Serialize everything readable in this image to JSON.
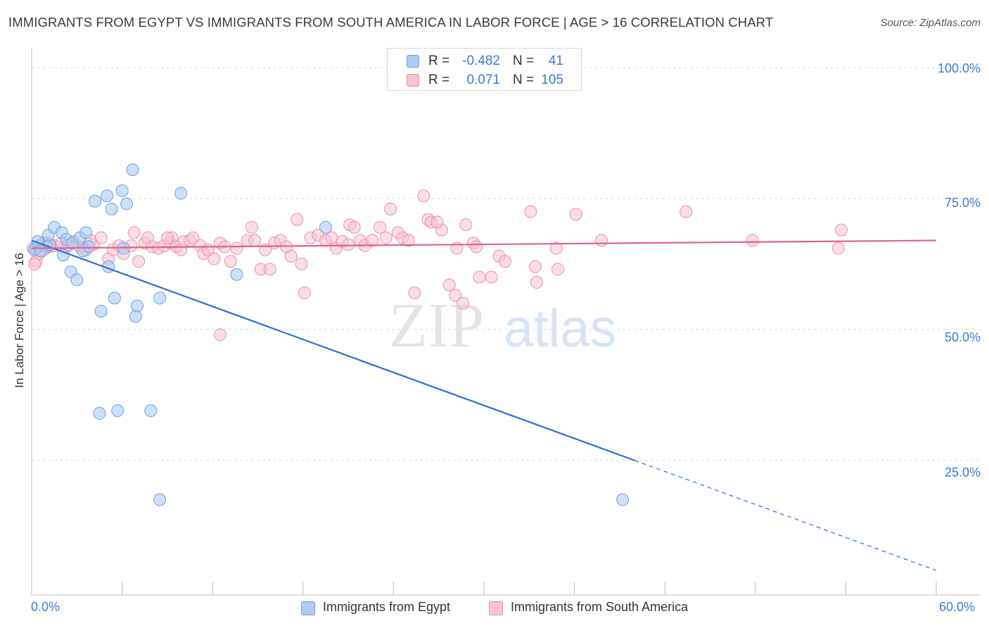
{
  "title": "IMMIGRANTS FROM EGYPT VS IMMIGRANTS FROM SOUTH AMERICA IN LABOR FORCE | AGE > 16 CORRELATION CHART",
  "source": "Source: ZipAtlas.com",
  "watermark": {
    "zip": "ZIP",
    "atlas": "atlas"
  },
  "legend": {
    "rows": [
      {
        "r_label": "R =",
        "r_value": "-0.482",
        "n_label": "N =",
        "n_value": "41"
      },
      {
        "r_label": "R =",
        "r_value": "0.071",
        "n_label": "N =",
        "n_value": "105"
      }
    ]
  },
  "colors": {
    "egypt_fill": "#aecbf2",
    "egypt_stroke": "#6e9ede",
    "egypt_line": "#2f6fd0",
    "sa_fill": "#f6c3d3",
    "sa_stroke": "#e98fad",
    "sa_line": "#e0628e",
    "tick_text": "#3f7bcc",
    "grid": "#d8d8d8"
  },
  "chart_data": {
    "type": "scatter",
    "title": "IMMIGRANTS FROM EGYPT VS IMMIGRANTS FROM SOUTH AMERICA IN LABOR FORCE | AGE > 16 CORRELATION CHART",
    "xlabel": "",
    "ylabel": "In Labor Force | Age > 16",
    "xlim": [
      0,
      60
    ],
    "ylim": [
      4,
      102
    ],
    "x_tick_labels": [
      "0.0%",
      "60.0%"
    ],
    "y_tick_labels": [
      "25.0%",
      "50.0%",
      "75.0%",
      "100.0%"
    ],
    "y_ticks": [
      25,
      50,
      75,
      100
    ],
    "grid": "horizontal dashed",
    "legend_position": "top-center",
    "series": [
      {
        "name": "Immigrants from Egypt",
        "r": -0.482,
        "n": 41,
        "trend": {
          "x": [
            0,
            40,
            60
          ],
          "y": [
            67,
            25,
            4
          ],
          "solid_until_x": 40
        },
        "points": [
          [
            0.3,
            65.5
          ],
          [
            0.5,
            66
          ],
          [
            0.8,
            66.5
          ],
          [
            1.0,
            65.8
          ],
          [
            1.2,
            66.2
          ],
          [
            0.2,
            65.2
          ],
          [
            0.4,
            66.8
          ],
          [
            1.1,
            68
          ],
          [
            1.5,
            69.5
          ],
          [
            2.0,
            68.5
          ],
          [
            2.1,
            64.2
          ],
          [
            2.3,
            67.2
          ],
          [
            2.7,
            66.5
          ],
          [
            2.6,
            61
          ],
          [
            3.0,
            59.5
          ],
          [
            3.2,
            67.5
          ],
          [
            3.4,
            65
          ],
          [
            3.6,
            68.5
          ],
          [
            3.8,
            65.8
          ],
          [
            4.2,
            74.5
          ],
          [
            4.6,
            53.5
          ],
          [
            5.0,
            75.5
          ],
          [
            5.1,
            62
          ],
          [
            5.3,
            73
          ],
          [
            5.5,
            56
          ],
          [
            6.0,
            76.5
          ],
          [
            6.1,
            65.5
          ],
          [
            6.3,
            74
          ],
          [
            6.7,
            80.5
          ],
          [
            6.9,
            52.5
          ],
          [
            7.0,
            54.5
          ],
          [
            8.5,
            56
          ],
          [
            9.9,
            76
          ],
          [
            4.5,
            34
          ],
          [
            5.7,
            34.5
          ],
          [
            7.9,
            34.5
          ],
          [
            8.5,
            17.5
          ],
          [
            13.6,
            60.5
          ],
          [
            19.5,
            69.5
          ],
          [
            39.2,
            17.5
          ],
          [
            0.6,
            65
          ]
        ]
      },
      {
        "name": "Immigrants from South America",
        "r": 0.071,
        "n": 105,
        "trend": {
          "x": [
            0,
            60
          ],
          "y": [
            65.5,
            67
          ]
        },
        "points": [
          [
            0.3,
            63
          ],
          [
            0.5,
            64.5
          ],
          [
            0.8,
            65.2
          ],
          [
            1.2,
            65.8
          ],
          [
            1.5,
            66
          ],
          [
            2.0,
            66.5
          ],
          [
            2.4,
            66.2
          ],
          [
            2.8,
            66.8
          ],
          [
            3.2,
            65.8
          ],
          [
            3.6,
            65.2
          ],
          [
            3.9,
            67
          ],
          [
            4.1,
            66.2
          ],
          [
            4.6,
            67.5
          ],
          [
            5.1,
            63.5
          ],
          [
            5.4,
            65.2
          ],
          [
            5.8,
            66
          ],
          [
            6.1,
            64.5
          ],
          [
            6.6,
            66
          ],
          [
            6.8,
            68.5
          ],
          [
            7.1,
            63
          ],
          [
            7.5,
            66.5
          ],
          [
            7.7,
            67.5
          ],
          [
            8.0,
            65.8
          ],
          [
            8.4,
            65.5
          ],
          [
            8.8,
            66
          ],
          [
            9.2,
            66.5
          ],
          [
            9.3,
            67.5
          ],
          [
            9.6,
            65.8
          ],
          [
            9.9,
            65.2
          ],
          [
            10.1,
            66.8
          ],
          [
            10.5,
            67
          ],
          [
            10.7,
            67.5
          ],
          [
            11.2,
            66
          ],
          [
            11.4,
            64.5
          ],
          [
            11.7,
            65.2
          ],
          [
            12.1,
            63.5
          ],
          [
            12.5,
            66.5
          ],
          [
            12.8,
            65.8
          ],
          [
            13.2,
            63
          ],
          [
            13.6,
            65.5
          ],
          [
            14.3,
            67
          ],
          [
            14.6,
            69.5
          ],
          [
            14.8,
            67
          ],
          [
            15.2,
            61.5
          ],
          [
            15.5,
            65.2
          ],
          [
            15.8,
            61.5
          ],
          [
            16.1,
            66.5
          ],
          [
            16.5,
            67
          ],
          [
            16.9,
            65.8
          ],
          [
            17.2,
            64
          ],
          [
            17.6,
            71
          ],
          [
            17.9,
            62.5
          ],
          [
            18.1,
            57
          ],
          [
            18.5,
            67.5
          ],
          [
            19.0,
            68
          ],
          [
            19.5,
            67
          ],
          [
            19.9,
            67.5
          ],
          [
            20.2,
            65.5
          ],
          [
            20.6,
            66.8
          ],
          [
            21.1,
            70
          ],
          [
            21.4,
            69.5
          ],
          [
            21.8,
            67
          ],
          [
            22.1,
            66
          ],
          [
            22.6,
            67
          ],
          [
            23.1,
            69.5
          ],
          [
            23.5,
            67.5
          ],
          [
            23.8,
            73
          ],
          [
            24.3,
            68.5
          ],
          [
            24.6,
            67.5
          ],
          [
            25.0,
            67
          ],
          [
            25.4,
            57
          ],
          [
            26.0,
            75.5
          ],
          [
            26.3,
            71
          ],
          [
            26.5,
            70.5
          ],
          [
            27.2,
            69
          ],
          [
            26.9,
            70.5
          ],
          [
            27.7,
            58.5
          ],
          [
            28.1,
            56.5
          ],
          [
            28.2,
            65.5
          ],
          [
            28.8,
            70
          ],
          [
            29.3,
            66.5
          ],
          [
            29.5,
            65.8
          ],
          [
            29.7,
            60
          ],
          [
            30.5,
            60
          ],
          [
            31.0,
            64
          ],
          [
            31.4,
            63
          ],
          [
            33.1,
            72.5
          ],
          [
            33.4,
            62
          ],
          [
            33.5,
            59
          ],
          [
            34.8,
            65.5
          ],
          [
            34.9,
            61.5
          ],
          [
            36.1,
            72
          ],
          [
            37.8,
            67
          ],
          [
            43.4,
            72.5
          ],
          [
            47.8,
            67
          ],
          [
            53.5,
            65.5
          ],
          [
            53.7,
            69
          ],
          [
            12.5,
            49
          ],
          [
            21.0,
            66.2
          ],
          [
            28.6,
            55
          ],
          [
            9.0,
            67.5
          ],
          [
            2.4,
            66
          ],
          [
            1.0,
            66.5
          ],
          [
            0.2,
            62.5
          ],
          [
            0.1,
            65.5
          ]
        ]
      }
    ]
  },
  "bottom_legend": {
    "egypt_label": "Immigrants from Egypt",
    "sa_label": "Immigrants from South America"
  },
  "axes": {
    "x_left_label": "0.0%",
    "x_right_label": "60.0%",
    "y_labels": {
      "y100": "100.0%",
      "y75": "75.0%",
      "y50": "50.0%",
      "y25": "25.0%"
    },
    "ylabel": "In Labor Force | Age > 16"
  }
}
